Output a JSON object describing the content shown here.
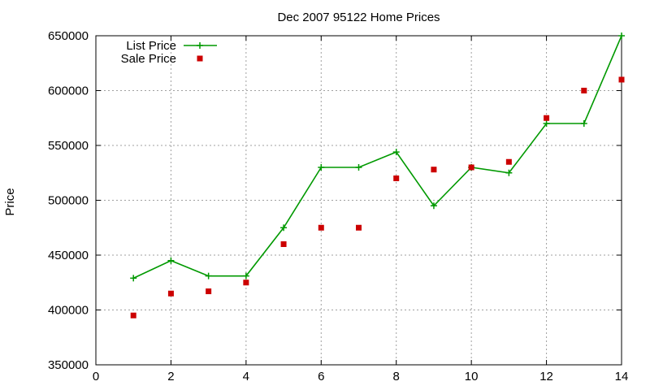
{
  "chart_data": {
    "type": "line",
    "title": "Dec 2007 95122 Home Prices",
    "xlabel": "",
    "ylabel": "Price",
    "xlim": [
      0,
      14
    ],
    "ylim": [
      350000,
      650000
    ],
    "xticks": [
      0,
      2,
      4,
      6,
      8,
      10,
      12,
      14
    ],
    "yticks": [
      350000,
      400000,
      450000,
      500000,
      550000,
      600000,
      650000
    ],
    "grid": true,
    "legend": "top-left",
    "series": [
      {
        "name": "List Price",
        "style": "linespoints",
        "marker": "plus",
        "color": "#009900",
        "x": [
          1,
          2,
          3,
          4,
          5,
          6,
          7,
          8,
          9,
          10,
          11,
          12,
          13,
          14
        ],
        "y": [
          429000,
          445000,
          431000,
          431000,
          475000,
          530000,
          530000,
          544000,
          495000,
          530000,
          525000,
          570000,
          570000,
          650000
        ]
      },
      {
        "name": "Sale Price",
        "style": "points",
        "marker": "square",
        "color": "#cc0000",
        "x": [
          1,
          2,
          3,
          4,
          5,
          6,
          7,
          8,
          9,
          10,
          11,
          12,
          13,
          14
        ],
        "y": [
          395000,
          415000,
          417000,
          425000,
          460000,
          475000,
          475000,
          520000,
          528000,
          530000,
          535000,
          575000,
          600000,
          610000
        ]
      }
    ]
  }
}
